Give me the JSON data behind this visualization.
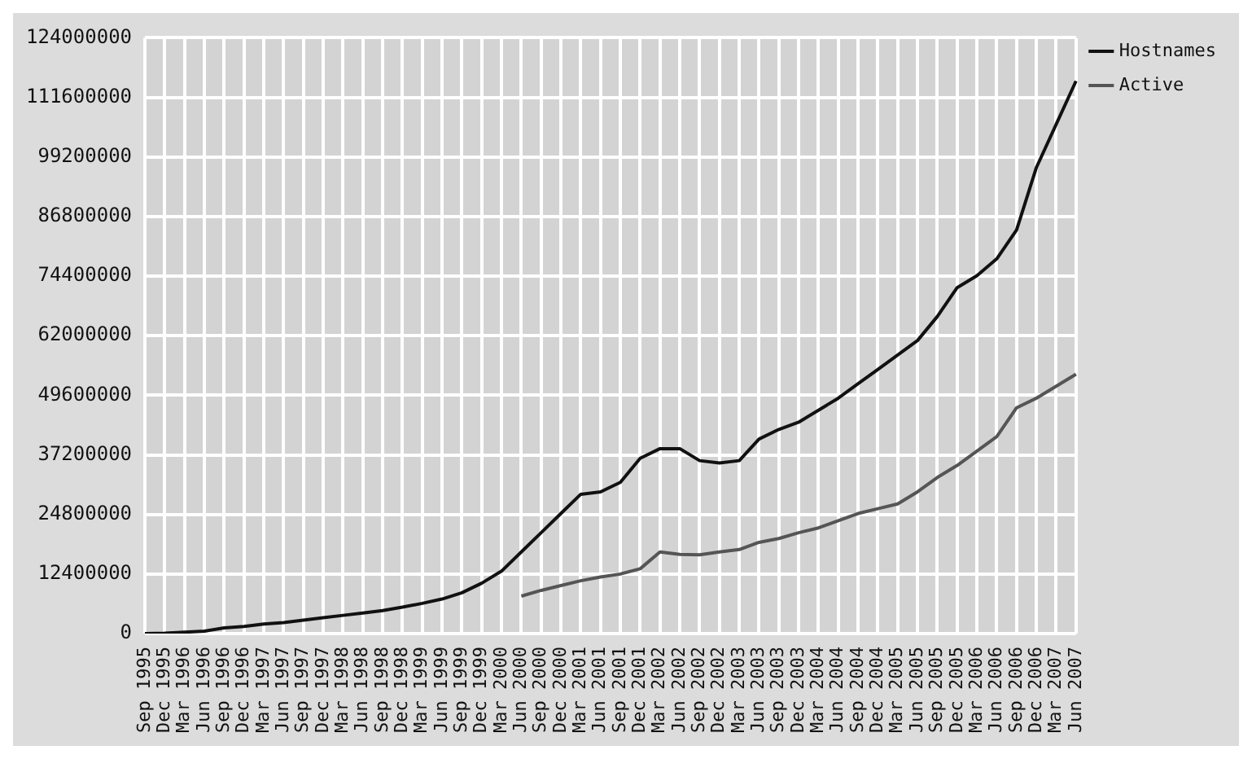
{
  "chart_data": {
    "type": "line",
    "categories": [
      "Sep 1995",
      "Dec 1995",
      "Mar 1996",
      "Jun 1996",
      "Sep 1996",
      "Dec 1996",
      "Mar 1997",
      "Jun 1997",
      "Sep 1997",
      "Dec 1997",
      "Mar 1998",
      "Jun 1998",
      "Sep 1998",
      "Dec 1998",
      "Mar 1999",
      "Jun 1999",
      "Sep 1999",
      "Dec 1999",
      "Mar 2000",
      "Jun 2000",
      "Sep 2000",
      "Dec 2000",
      "Mar 2001",
      "Jun 2001",
      "Sep 2001",
      "Dec 2001",
      "Mar 2002",
      "Jun 2002",
      "Sep 2002",
      "Dec 2002",
      "Mar 2003",
      "Jun 2003",
      "Sep 2003",
      "Dec 2003",
      "Mar 2004",
      "Jun 2004",
      "Sep 2004",
      "Dec 2004",
      "Mar 2005",
      "Jun 2005",
      "Sep 2005",
      "Dec 2005",
      "Mar 2006",
      "Jun 2006",
      "Sep 2006",
      "Dec 2006",
      "Mar 2007",
      "Jun 2007"
    ],
    "series": [
      {
        "name": "Hostnames",
        "color": "#111111",
        "values": [
          0,
          100000,
          300000,
          500000,
          1200000,
          1500000,
          2000000,
          2300000,
          2800000,
          3300000,
          3800000,
          4300000,
          4800000,
          5500000,
          6300000,
          7200000,
          8500000,
          10500000,
          13000000,
          17000000,
          21000000,
          25000000,
          29000000,
          29500000,
          31500000,
          36500000,
          38500000,
          38500000,
          36000000,
          35500000,
          36000000,
          40500000,
          42500000,
          44000000,
          46500000,
          49000000,
          52000000,
          55000000,
          58000000,
          61000000,
          66000000,
          72000000,
          74500000,
          78000000,
          84000000,
          97000000,
          106000000,
          115000000
        ]
      },
      {
        "name": "Active",
        "color": "#555555",
        "values": [
          null,
          null,
          null,
          null,
          null,
          null,
          null,
          null,
          null,
          null,
          null,
          null,
          null,
          null,
          null,
          null,
          null,
          null,
          null,
          7800000,
          9000000,
          10000000,
          11000000,
          11800000,
          12400000,
          13500000,
          17000000,
          16500000,
          16400000,
          17000000,
          17500000,
          19000000,
          19800000,
          21000000,
          22000000,
          23500000,
          25000000,
          26000000,
          27000000,
          29500000,
          32500000,
          35000000,
          38000000,
          41000000,
          47000000,
          49000000,
          51500000,
          54000000
        ]
      }
    ],
    "ylim": [
      0,
      124000000
    ],
    "yticks": [
      0,
      12400000,
      24800000,
      37200000,
      49600000,
      62000000,
      74400000,
      86800000,
      99200000,
      111600000,
      124000000
    ],
    "grid": true,
    "legend": "top right",
    "marker": "none",
    "line_style": "solid"
  }
}
